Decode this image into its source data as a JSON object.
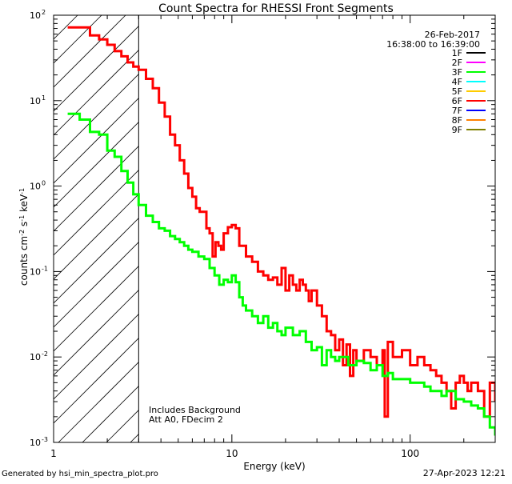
{
  "chart_data": {
    "type": "line",
    "title": "Count Spectra for RHESSI Front Segments",
    "xlabel": "Energy (keV)",
    "ylabel": "counts cm-2 s-1 keV-1",
    "x_scale": "log",
    "y_scale": "log",
    "xlim": [
      1,
      300
    ],
    "ylim": [
      0.001,
      100
    ],
    "x_ticks": [
      {
        "value": 10,
        "label": "10"
      },
      {
        "value": 100,
        "label": "100"
      }
    ],
    "y_ticks": [
      {
        "value": 0.001,
        "mant": "10",
        "exp": "-3"
      },
      {
        "value": 0.01,
        "mant": "10",
        "exp": "-2"
      },
      {
        "value": 0.1,
        "mant": "10",
        "exp": "-1"
      },
      {
        "value": 1,
        "mant": "10",
        "exp": "0"
      },
      {
        "value": 10,
        "mant": "10",
        "exp": "1"
      },
      {
        "value": 100,
        "mant": "10",
        "exp": "2"
      }
    ],
    "x_tick_label_1": "1",
    "date_label": "26-Feb-2017",
    "time_range_label": "16:38:00 to 16:39:00",
    "legend": [
      {
        "label": "1F",
        "color": "#000000"
      },
      {
        "label": "2F",
        "color": "#ff00ff"
      },
      {
        "label": "3F",
        "color": "#00ff00"
      },
      {
        "label": "4F",
        "color": "#00ffff"
      },
      {
        "label": "5F",
        "color": "#ffcc00"
      },
      {
        "label": "6F",
        "color": "#ff0000"
      },
      {
        "label": "7F",
        "color": "#0000ff"
      },
      {
        "label": "8F",
        "color": "#ff8000"
      },
      {
        "label": "9F",
        "color": "#808000"
      }
    ],
    "annotations": [
      "Includes Background",
      "Att A0, FDecim 2"
    ],
    "excluded_region": {
      "from": 1,
      "to": 3
    },
    "series": [
      {
        "name": "6F",
        "color": "#ff0000",
        "points": [
          [
            1.2,
            72
          ],
          [
            1.4,
            72
          ],
          [
            1.6,
            58
          ],
          [
            1.8,
            52
          ],
          [
            2.0,
            45
          ],
          [
            2.2,
            38
          ],
          [
            2.4,
            33
          ],
          [
            2.6,
            28
          ],
          [
            2.8,
            25
          ],
          [
            3.0,
            23
          ],
          [
            3.3,
            18
          ],
          [
            3.6,
            14
          ],
          [
            3.9,
            9.5
          ],
          [
            4.2,
            6.5
          ],
          [
            4.5,
            4.0
          ],
          [
            4.8,
            3.0
          ],
          [
            5.1,
            2.0
          ],
          [
            5.4,
            1.4
          ],
          [
            5.7,
            0.95
          ],
          [
            6.0,
            0.75
          ],
          [
            6.3,
            0.55
          ],
          [
            6.6,
            0.5
          ],
          [
            6.9,
            0.5
          ],
          [
            7.2,
            0.32
          ],
          [
            7.5,
            0.28
          ],
          [
            7.8,
            0.15
          ],
          [
            8.1,
            0.22
          ],
          [
            8.4,
            0.2
          ],
          [
            8.7,
            0.18
          ],
          [
            9.0,
            0.28
          ],
          [
            9.5,
            0.33
          ],
          [
            10.0,
            0.35
          ],
          [
            10.5,
            0.32
          ],
          [
            11.0,
            0.2
          ],
          [
            12.0,
            0.15
          ],
          [
            13.0,
            0.13
          ],
          [
            14.0,
            0.1
          ],
          [
            15.0,
            0.09
          ],
          [
            16.0,
            0.08
          ],
          [
            17.0,
            0.085
          ],
          [
            18.0,
            0.07
          ],
          [
            19.0,
            0.11
          ],
          [
            20.0,
            0.06
          ],
          [
            21.0,
            0.09
          ],
          [
            22.0,
            0.07
          ],
          [
            23.0,
            0.06
          ],
          [
            24.0,
            0.08
          ],
          [
            25.0,
            0.07
          ],
          [
            26.0,
            0.06
          ],
          [
            27.0,
            0.045
          ],
          [
            28.0,
            0.06
          ],
          [
            30.0,
            0.04
          ],
          [
            32.0,
            0.03
          ],
          [
            34.0,
            0.02
          ],
          [
            36.0,
            0.018
          ],
          [
            38.0,
            0.012
          ],
          [
            40.0,
            0.016
          ],
          [
            42.0,
            0.008
          ],
          [
            44.0,
            0.014
          ],
          [
            46.0,
            0.006
          ],
          [
            48.0,
            0.012
          ],
          [
            50.0,
            0.009
          ],
          [
            55.0,
            0.012
          ],
          [
            60.0,
            0.01
          ],
          [
            65.0,
            0.008
          ],
          [
            70.0,
            0.012
          ],
          [
            72.0,
            0.002
          ],
          [
            75.0,
            0.015
          ],
          [
            80.0,
            0.01
          ],
          [
            90.0,
            0.012
          ],
          [
            100.0,
            0.008
          ],
          [
            110.0,
            0.01
          ],
          [
            120.0,
            0.008
          ],
          [
            130.0,
            0.007
          ],
          [
            140.0,
            0.006
          ],
          [
            150.0,
            0.005
          ],
          [
            160.0,
            0.004
          ],
          [
            170.0,
            0.0025
          ],
          [
            180.0,
            0.005
          ],
          [
            190.0,
            0.006
          ],
          [
            200.0,
            0.005
          ],
          [
            210.0,
            0.004
          ],
          [
            220.0,
            0.005
          ],
          [
            240.0,
            0.004
          ],
          [
            260.0,
            0.002
          ],
          [
            280.0,
            0.005
          ],
          [
            300.0,
            0.003
          ]
        ]
      },
      {
        "name": "3F",
        "color": "#00ff00",
        "points": [
          [
            1.2,
            7
          ],
          [
            1.4,
            6
          ],
          [
            1.6,
            4.3
          ],
          [
            1.8,
            4.0
          ],
          [
            2.0,
            2.6
          ],
          [
            2.2,
            2.2
          ],
          [
            2.4,
            1.5
          ],
          [
            2.6,
            1.1
          ],
          [
            2.8,
            0.8
          ],
          [
            3.0,
            0.6
          ],
          [
            3.3,
            0.45
          ],
          [
            3.6,
            0.38
          ],
          [
            3.9,
            0.32
          ],
          [
            4.2,
            0.3
          ],
          [
            4.5,
            0.26
          ],
          [
            4.8,
            0.24
          ],
          [
            5.1,
            0.22
          ],
          [
            5.4,
            0.2
          ],
          [
            5.7,
            0.18
          ],
          [
            6.0,
            0.17
          ],
          [
            6.5,
            0.15
          ],
          [
            7.0,
            0.14
          ],
          [
            7.5,
            0.11
          ],
          [
            8.0,
            0.09
          ],
          [
            8.5,
            0.07
          ],
          [
            9.0,
            0.08
          ],
          [
            9.5,
            0.075
          ],
          [
            10.0,
            0.09
          ],
          [
            10.5,
            0.075
          ],
          [
            11.0,
            0.05
          ],
          [
            11.5,
            0.04
          ],
          [
            12.0,
            0.035
          ],
          [
            13.0,
            0.03
          ],
          [
            14.0,
            0.025
          ],
          [
            15.0,
            0.03
          ],
          [
            16.0,
            0.022
          ],
          [
            17.0,
            0.025
          ],
          [
            18.0,
            0.02
          ],
          [
            19.0,
            0.018
          ],
          [
            20.0,
            0.022
          ],
          [
            22.0,
            0.018
          ],
          [
            24.0,
            0.02
          ],
          [
            26.0,
            0.015
          ],
          [
            28.0,
            0.012
          ],
          [
            30.0,
            0.013
          ],
          [
            32.0,
            0.008
          ],
          [
            34.0,
            0.012
          ],
          [
            36.0,
            0.01
          ],
          [
            38.0,
            0.009
          ],
          [
            40.0,
            0.01
          ],
          [
            45.0,
            0.008
          ],
          [
            50.0,
            0.009
          ],
          [
            55.0,
            0.0085
          ],
          [
            60.0,
            0.007
          ],
          [
            65.0,
            0.008
          ],
          [
            70.0,
            0.006
          ],
          [
            75.0,
            0.0065
          ],
          [
            80.0,
            0.0055
          ],
          [
            90.0,
            0.0055
          ],
          [
            100.0,
            0.005
          ],
          [
            110.0,
            0.005
          ],
          [
            120.0,
            0.0045
          ],
          [
            130.0,
            0.004
          ],
          [
            140.0,
            0.004
          ],
          [
            150.0,
            0.0035
          ],
          [
            160.0,
            0.004
          ],
          [
            180.0,
            0.0032
          ],
          [
            200.0,
            0.003
          ],
          [
            220.0,
            0.0027
          ],
          [
            240.0,
            0.0025
          ],
          [
            260.0,
            0.002
          ],
          [
            280.0,
            0.0015
          ],
          [
            300.0,
            0.0012
          ]
        ]
      }
    ]
  },
  "footer": {
    "generated_by": "Generated by hsi_min_spectra_plot.pro",
    "timestamp": "27-Apr-2023 12:21"
  }
}
